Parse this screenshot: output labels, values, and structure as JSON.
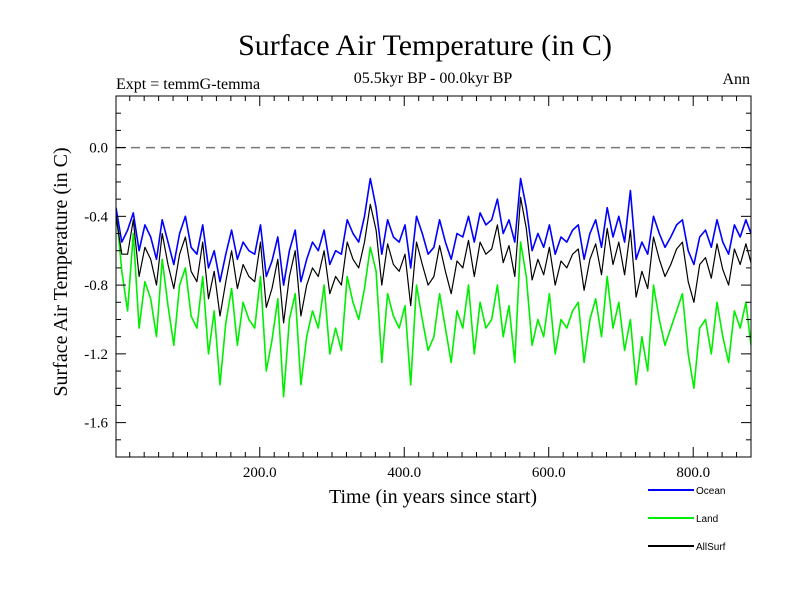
{
  "chart_data": {
    "type": "line",
    "title": "Surface Air Temperature (in C)",
    "subtitle": "05.5kyr BP - 00.0kyr BP",
    "expt_label": "Expt = temmG-temma",
    "season_label": "Ann",
    "xlabel": "Time (in years since start)",
    "ylabel": "Surface Air Temperature (in C)",
    "xlim": [
      1,
      880
    ],
    "ylim": [
      -1.8,
      0.3
    ],
    "x_ticks": [
      200,
      400,
      600,
      800
    ],
    "x_tick_labels": [
      "200.0",
      "400.0",
      "600.0",
      "800.0"
    ],
    "y_ticks": [
      0.0,
      -0.4,
      -0.8,
      -1.2,
      -1.6
    ],
    "y_tick_labels": [
      "0.0",
      "-0.4",
      "-0.8",
      "-1.2",
      "-1.6"
    ],
    "reference_line": {
      "y": 0.0,
      "style": "dashed",
      "color": "#777777"
    },
    "legend_position": "bottom-right, below plot",
    "series": [
      {
        "name": "Land",
        "color": "#00ee00",
        "x_start": 1,
        "x_step": 8,
        "values": [
          -0.35,
          -0.72,
          -0.95,
          -0.5,
          -1.05,
          -0.78,
          -0.88,
          -1.1,
          -0.65,
          -0.92,
          -1.15,
          -0.8,
          -0.7,
          -0.98,
          -1.05,
          -0.75,
          -1.2,
          -0.95,
          -1.38,
          -1.02,
          -0.82,
          -1.15,
          -0.9,
          -1.0,
          -1.05,
          -0.75,
          -1.3,
          -1.12,
          -0.88,
          -1.45,
          -1.0,
          -0.85,
          -1.38,
          -1.1,
          -0.95,
          -1.05,
          -0.8,
          -1.2,
          -1.05,
          -1.18,
          -0.75,
          -0.9,
          -1.0,
          -0.82,
          -0.58,
          -0.72,
          -1.25,
          -0.85,
          -0.98,
          -1.05,
          -0.92,
          -1.38,
          -0.8,
          -1.0,
          -1.18,
          -1.1,
          -0.85,
          -1.05,
          -1.25,
          -0.95,
          -1.05,
          -0.8,
          -1.2,
          -0.9,
          -1.05,
          -1.0,
          -0.8,
          -1.1,
          -0.92,
          -1.25,
          -0.55,
          -0.75,
          -1.15,
          -1.0,
          -1.1,
          -0.85,
          -1.2,
          -1.0,
          -1.05,
          -0.95,
          -0.9,
          -1.25,
          -1.0,
          -0.88,
          -1.1,
          -0.75,
          -1.05,
          -0.9,
          -1.18,
          -1.0,
          -1.38,
          -1.1,
          -1.3,
          -0.8,
          -1.0,
          -1.15,
          -1.05,
          -0.95,
          -0.85,
          -1.2,
          -1.4,
          -1.05,
          -1.0,
          -1.2,
          -0.9,
          -1.1,
          -1.25,
          -0.95,
          -1.05,
          -0.9,
          -1.15
        ]
      },
      {
        "name": "Ocean",
        "color": "#0000ff",
        "x_start": 1,
        "x_step": 8,
        "values": [
          -0.35,
          -0.55,
          -0.48,
          -0.38,
          -0.6,
          -0.45,
          -0.52,
          -0.65,
          -0.42,
          -0.55,
          -0.68,
          -0.5,
          -0.4,
          -0.58,
          -0.62,
          -0.45,
          -0.7,
          -0.6,
          -0.78,
          -0.62,
          -0.48,
          -0.65,
          -0.55,
          -0.6,
          -0.62,
          -0.45,
          -0.75,
          -0.66,
          -0.52,
          -0.8,
          -0.6,
          -0.48,
          -0.78,
          -0.65,
          -0.55,
          -0.6,
          -0.48,
          -0.68,
          -0.6,
          -0.62,
          -0.42,
          -0.5,
          -0.55,
          -0.4,
          -0.18,
          -0.35,
          -0.62,
          -0.42,
          -0.52,
          -0.55,
          -0.45,
          -0.7,
          -0.4,
          -0.5,
          -0.62,
          -0.58,
          -0.42,
          -0.55,
          -0.65,
          -0.5,
          -0.52,
          -0.4,
          -0.55,
          -0.38,
          -0.45,
          -0.42,
          -0.3,
          -0.5,
          -0.42,
          -0.55,
          -0.18,
          -0.35,
          -0.6,
          -0.5,
          -0.58,
          -0.45,
          -0.62,
          -0.52,
          -0.55,
          -0.48,
          -0.45,
          -0.65,
          -0.5,
          -0.42,
          -0.58,
          -0.35,
          -0.52,
          -0.4,
          -0.55,
          -0.25,
          -0.65,
          -0.55,
          -0.62,
          -0.4,
          -0.5,
          -0.58,
          -0.52,
          -0.45,
          -0.42,
          -0.6,
          -0.68,
          -0.52,
          -0.48,
          -0.58,
          -0.42,
          -0.55,
          -0.62,
          -0.45,
          -0.52,
          -0.42,
          -0.5
        ]
      },
      {
        "name": "AllSurf",
        "color": "#000000",
        "x_start": 1,
        "x_step": 8,
        "values": [
          -0.4,
          -0.62,
          -0.62,
          -0.42,
          -0.75,
          -0.58,
          -0.65,
          -0.8,
          -0.5,
          -0.68,
          -0.82,
          -0.62,
          -0.52,
          -0.72,
          -0.78,
          -0.55,
          -0.88,
          -0.72,
          -0.98,
          -0.78,
          -0.6,
          -0.82,
          -0.68,
          -0.75,
          -0.78,
          -0.55,
          -0.93,
          -0.82,
          -0.65,
          -1.02,
          -0.75,
          -0.6,
          -0.98,
          -0.8,
          -0.7,
          -0.75,
          -0.6,
          -0.85,
          -0.75,
          -0.8,
          -0.55,
          -0.65,
          -0.7,
          -0.55,
          -0.33,
          -0.48,
          -0.8,
          -0.56,
          -0.68,
          -0.72,
          -0.62,
          -0.92,
          -0.55,
          -0.68,
          -0.8,
          -0.75,
          -0.57,
          -0.72,
          -0.85,
          -0.66,
          -0.7,
          -0.54,
          -0.75,
          -0.55,
          -0.62,
          -0.59,
          -0.45,
          -0.67,
          -0.57,
          -0.75,
          -0.29,
          -0.47,
          -0.77,
          -0.65,
          -0.74,
          -0.58,
          -0.8,
          -0.66,
          -0.7,
          -0.62,
          -0.59,
          -0.83,
          -0.65,
          -0.56,
          -0.74,
          -0.47,
          -0.68,
          -0.55,
          -0.74,
          -0.48,
          -0.87,
          -0.72,
          -0.82,
          -0.52,
          -0.65,
          -0.75,
          -0.68,
          -0.59,
          -0.55,
          -0.78,
          -0.9,
          -0.68,
          -0.64,
          -0.76,
          -0.56,
          -0.71,
          -0.8,
          -0.59,
          -0.68,
          -0.56,
          -0.67
        ]
      }
    ]
  }
}
